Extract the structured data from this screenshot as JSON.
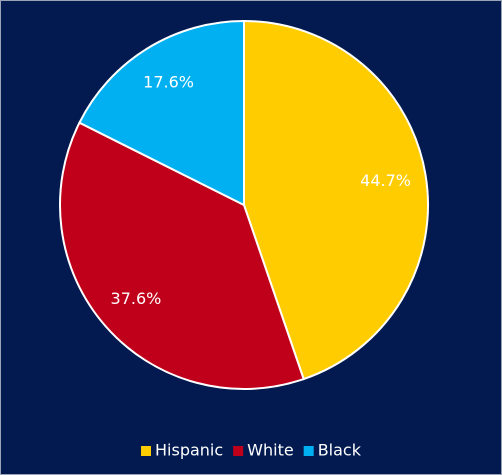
{
  "chart_data": {
    "type": "pie",
    "categories": [
      "Hispanic",
      "White",
      "Black"
    ],
    "values": [
      44.7,
      37.6,
      17.6
    ],
    "value_labels": [
      "44.7%",
      "37.6%",
      "17.6%"
    ],
    "colors": [
      "#ffcc00",
      "#c0001a",
      "#00b0f0"
    ],
    "legend": "bottom"
  }
}
